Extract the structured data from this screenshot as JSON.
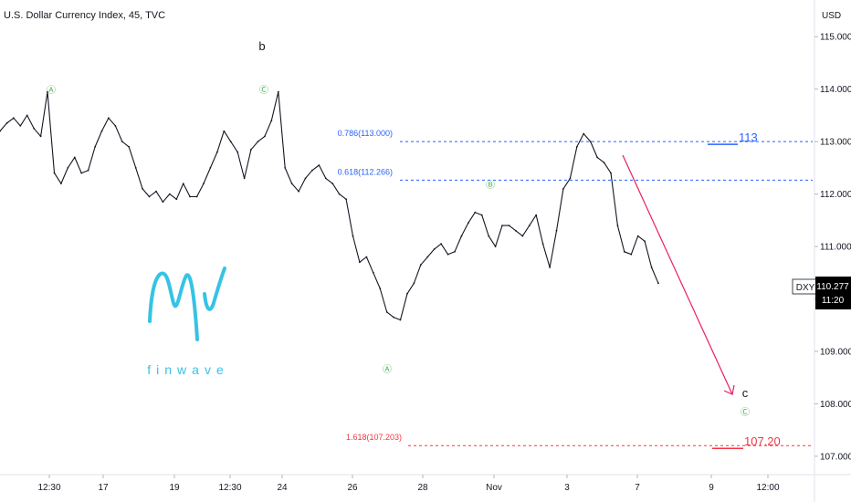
{
  "header": {
    "title": "U.S. Dollar Currency Index, 45, TVC"
  },
  "price_axis": {
    "unit": "USD"
  },
  "chart_data": {
    "type": "line",
    "title": "U.S. Dollar Currency Index, 45, TVC",
    "ylabel": "USD",
    "ylim": [
      106.65,
      115.7
    ],
    "y_ticks": [
      "115.000",
      "114.000",
      "113.000",
      "112.000",
      "111.000",
      "110.000",
      "109.000",
      "108.000",
      "107.000"
    ],
    "x_ticks": [
      "12:30",
      "17",
      "19",
      "12:30",
      "24",
      "26",
      "28",
      "Nov",
      "3",
      "7",
      "9",
      "12:00"
    ],
    "series": [
      {
        "values": [
          113.2,
          113.35,
          113.45,
          113.3,
          113.5,
          113.25,
          113.1,
          113.95,
          112.4,
          112.2,
          112.5,
          112.7,
          112.4,
          112.45,
          112.9,
          113.2,
          113.45,
          113.3,
          113.0,
          112.9,
          112.5,
          112.1,
          111.95,
          112.05,
          111.85,
          112.0,
          111.9,
          112.2,
          111.95,
          111.95,
          112.2,
          112.5,
          112.8,
          113.2,
          113.0,
          112.8,
          112.3,
          112.85,
          113.0,
          113.1,
          113.4,
          113.95,
          112.5,
          112.2,
          112.05,
          112.3,
          112.45,
          112.55,
          112.3,
          112.2,
          112.0,
          111.9,
          111.2,
          110.7,
          110.8,
          110.5,
          110.2,
          109.75,
          109.65,
          109.6,
          110.1,
          110.3,
          110.65,
          110.8,
          110.95,
          111.05,
          110.85,
          110.9,
          111.2,
          111.45,
          111.65,
          111.6,
          111.2,
          111.0,
          111.4,
          111.4,
          111.3,
          111.2,
          111.4,
          111.6,
          111.05,
          110.6,
          111.3,
          112.1,
          112.3,
          112.9,
          113.15,
          113.0,
          112.7,
          112.6,
          112.4,
          111.4,
          110.9,
          110.85,
          111.2,
          111.1,
          110.6,
          110.3
        ]
      }
    ]
  },
  "fib_levels": [
    {
      "label": "0.786(113.000)",
      "price": 113.0,
      "tag": "113"
    },
    {
      "label": "0.618(112.266)",
      "price": 112.266
    },
    {
      "label": "1.618(107.203)",
      "price": 107.203,
      "tag": "107.20"
    }
  ],
  "wave_labels": {
    "A_top": "Ⓐ",
    "C_top": "Ⓒ",
    "B_mid": "Ⓑ",
    "A_bottom": "Ⓐ",
    "C_bottom": "Ⓒ",
    "b": "b",
    "c": "c"
  },
  "symbol_tag": {
    "symbol": "DXY",
    "price": "110.277",
    "countdown": "11:20"
  },
  "logo": {
    "text": "finwave"
  },
  "colors": {
    "candle": "#131722",
    "fib_blue": "#2962ff",
    "fib_red": "#f23645",
    "wave_green": "#4caf50",
    "arrow_red": "#e91e63",
    "tag_bg": "#000000",
    "logo_cyan": "#36c3e5"
  }
}
